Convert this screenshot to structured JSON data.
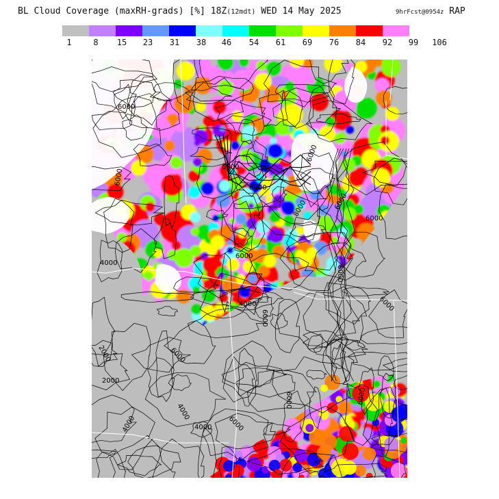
{
  "title": {
    "main_prefix": "BL Cloud Coverage (maxRH-grads) [%] 18Z",
    "main_small": "(12mdt)",
    "main_suffix": " WED 14 May 2025",
    "source_small": "9hrFcst@09",
    "source_zsmall": "54z",
    "model": " RAP"
  },
  "legend": {
    "colors": [
      "#c0c0c0",
      "#c080ff",
      "#8000ff",
      "#6699ff",
      "#0000ff",
      "#80ffff",
      "#00ffff",
      "#00e000",
      "#80ff00",
      "#ffff00",
      "#ff8000",
      "#ff0000",
      "#ff80ff"
    ],
    "labels": [
      "1",
      "8",
      "15",
      "23",
      "31",
      "38",
      "46",
      "54",
      "61",
      "69",
      "76",
      "84",
      "92",
      "99",
      "106"
    ]
  },
  "map": {
    "background_color": "#bdbdbd",
    "boundary_color": "#ffffff",
    "contour_color": "#000000",
    "contour_labels": [
      "6000",
      "6000",
      "6000",
      "4000",
      "6000",
      "6000",
      "6000",
      "4000",
      "8000",
      "6000",
      "6000",
      "6000",
      "6000",
      "2000",
      "6000",
      "4000",
      "6000",
      "2000",
      "4000",
      "6000",
      "6000",
      "6000",
      "4000"
    ]
  }
}
